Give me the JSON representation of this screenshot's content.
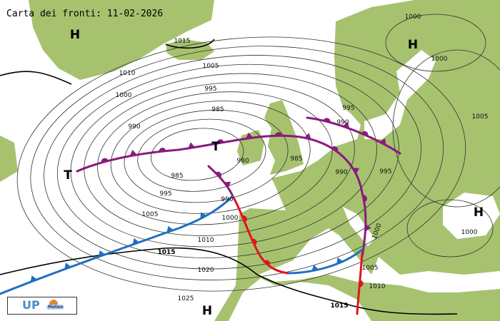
{
  "title": "Carta dei fronti: 11-02-2026",
  "logo": {
    "text": "UP",
    "subtext": "Meteo"
  },
  "colors": {
    "land": "#a6c26f",
    "sea": "#ffffff",
    "occluded_front": "#8b1a7e",
    "warm_front": "#e0141e",
    "cold_front": "#1f6fc0",
    "isobar": "#333333"
  },
  "pressure_centers": [
    {
      "type": "H"
    },
    {
      "type": "H"
    },
    {
      "type": "H"
    },
    {
      "type": "H"
    },
    {
      "type": "T"
    },
    {
      "type": "T"
    }
  ],
  "isobar_labels": [
    "1015",
    "1010",
    "1005",
    "1000",
    "995",
    "985",
    "990",
    "980",
    "985",
    "995",
    "1005",
    "990",
    "1000",
    "1010",
    "1015",
    "1020",
    "1025",
    "985",
    "990",
    "995",
    "990",
    "995",
    "1000",
    "1000",
    "1005",
    "1000",
    "1005",
    "1010",
    "1015",
    "1000"
  ]
}
